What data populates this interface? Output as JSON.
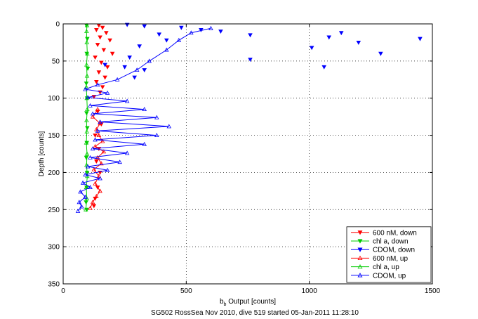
{
  "chart_data": {
    "type": "scatter",
    "xlabel": "b",
    "xlabel_sub": "b",
    "xlabel_rest": " Output [counts]",
    "ylabel": "Depth [counts]",
    "caption": "SG502 RossSea Nov 2010, dive 519 started 05-Jan-2011 11:28:10",
    "xlim": [
      0,
      1500
    ],
    "ylim": [
      0,
      350
    ],
    "y_reversed": true,
    "xticks": [
      0,
      500,
      1000,
      1500
    ],
    "yticks": [
      0,
      50,
      100,
      150,
      200,
      250,
      300,
      350
    ],
    "grid": true,
    "legend_position": "bottom-right",
    "series": [
      {
        "name": "600 nM, down",
        "color": "#ff0000",
        "marker": "triangle-down",
        "lines": false,
        "points": [
          [
            145,
            2
          ],
          [
            160,
            5
          ],
          [
            135,
            8
          ],
          [
            175,
            12
          ],
          [
            150,
            18
          ],
          [
            190,
            22
          ],
          [
            140,
            28
          ],
          [
            165,
            35
          ],
          [
            200,
            40
          ],
          [
            130,
            45
          ],
          [
            155,
            52
          ],
          [
            180,
            58
          ],
          [
            145,
            65
          ],
          [
            170,
            72
          ],
          [
            135,
            78
          ],
          [
            160,
            85
          ],
          [
            150,
            92
          ],
          [
            125,
            98
          ],
          [
            140,
            118
          ],
          [
            155,
            135
          ],
          [
            130,
            150
          ],
          [
            145,
            168
          ],
          [
            135,
            185
          ],
          [
            150,
            200
          ],
          [
            140,
            220
          ],
          [
            130,
            235
          ],
          [
            125,
            245
          ]
        ]
      },
      {
        "name": "chl a, down",
        "color": "#00cc00",
        "marker": "triangle-down",
        "lines": false,
        "points": [
          [
            95,
            2
          ],
          [
            98,
            20
          ],
          [
            96,
            40
          ],
          [
            100,
            60
          ],
          [
            94,
            80
          ],
          [
            97,
            100
          ],
          [
            95,
            120
          ],
          [
            98,
            140
          ],
          [
            96,
            160
          ],
          [
            94,
            180
          ],
          [
            97,
            200
          ],
          [
            95,
            220
          ],
          [
            93,
            240
          ],
          [
            95,
            250
          ]
        ]
      },
      {
        "name": "CDOM, down",
        "color": "#0000ff",
        "marker": "triangle-down",
        "lines": false,
        "points": [
          [
            260,
            1
          ],
          [
            330,
            3
          ],
          [
            480,
            5
          ],
          [
            560,
            8
          ],
          [
            640,
            10
          ],
          [
            760,
            15
          ],
          [
            1080,
            18
          ],
          [
            1130,
            12
          ],
          [
            1290,
            40
          ],
          [
            390,
            14
          ],
          [
            420,
            22
          ],
          [
            310,
            30
          ],
          [
            270,
            45
          ],
          [
            250,
            58
          ],
          [
            1200,
            25
          ],
          [
            1010,
            32
          ],
          [
            1450,
            20
          ],
          [
            760,
            48
          ],
          [
            1060,
            58
          ],
          [
            170,
            55
          ],
          [
            330,
            62
          ],
          [
            290,
            72
          ]
        ]
      },
      {
        "name": "600 nM, up",
        "color": "#ff0000",
        "marker": "triangle-up",
        "lines": true,
        "points": [
          [
            110,
            248
          ],
          [
            120,
            240
          ],
          [
            135,
            232
          ],
          [
            150,
            225
          ],
          [
            130,
            215
          ],
          [
            145,
            205
          ],
          [
            125,
            196
          ],
          [
            155,
            188
          ],
          [
            140,
            180
          ],
          [
            165,
            172
          ],
          [
            130,
            165
          ],
          [
            160,
            158
          ],
          [
            145,
            150
          ],
          [
            135,
            142
          ],
          [
            150,
            134
          ],
          [
            120,
            125
          ],
          [
            140,
            115
          ]
        ]
      },
      {
        "name": "chl a, up",
        "color": "#00cc00",
        "marker": "triangle-up",
        "lines": true,
        "points": [
          [
            92,
            250
          ],
          [
            96,
            235
          ],
          [
            94,
            220
          ],
          [
            98,
            205
          ],
          [
            95,
            190
          ],
          [
            97,
            175
          ],
          [
            94,
            160
          ],
          [
            96,
            145
          ],
          [
            95,
            130
          ],
          [
            98,
            115
          ],
          [
            96,
            100
          ],
          [
            94,
            85
          ],
          [
            97,
            70
          ],
          [
            95,
            55
          ],
          [
            98,
            40
          ],
          [
            96,
            25
          ],
          [
            95,
            10
          ],
          [
            97,
            2
          ]
        ]
      },
      {
        "name": "CDOM, up",
        "color": "#0000ff",
        "marker": "triangle-up",
        "lines": true,
        "points": [
          [
            60,
            252
          ],
          [
            75,
            246
          ],
          [
            65,
            240
          ],
          [
            90,
            233
          ],
          [
            70,
            226
          ],
          [
            110,
            220
          ],
          [
            80,
            214
          ],
          [
            150,
            208
          ],
          [
            90,
            203
          ],
          [
            180,
            197
          ],
          [
            100,
            192
          ],
          [
            230,
            186
          ],
          [
            110,
            180
          ],
          [
            260,
            174
          ],
          [
            120,
            168
          ],
          [
            330,
            162
          ],
          [
            130,
            156
          ],
          [
            380,
            150
          ],
          [
            140,
            144
          ],
          [
            430,
            138
          ],
          [
            150,
            132
          ],
          [
            380,
            126
          ],
          [
            120,
            121
          ],
          [
            330,
            115
          ],
          [
            110,
            110
          ],
          [
            260,
            104
          ],
          [
            100,
            99
          ],
          [
            180,
            93
          ],
          [
            90,
            88
          ],
          [
            140,
            82
          ],
          [
            220,
            75
          ],
          [
            300,
            62
          ],
          [
            350,
            50
          ],
          [
            420,
            35
          ],
          [
            470,
            22
          ],
          [
            520,
            12
          ],
          [
            600,
            6
          ]
        ]
      }
    ]
  }
}
